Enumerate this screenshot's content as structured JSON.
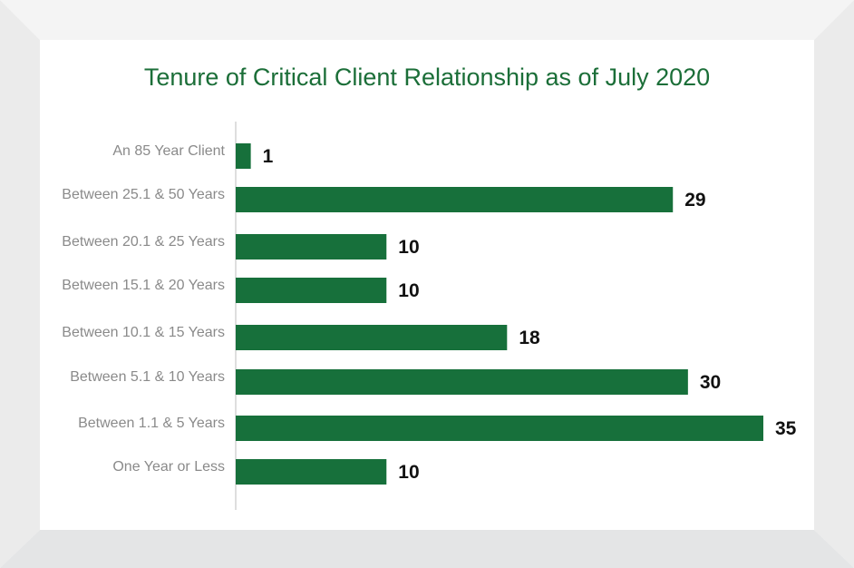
{
  "colors": {
    "bar": "#17703b",
    "title": "#1b6e38",
    "category_text": "#8a8a8a",
    "value_text": "#111111",
    "axis": "#bdbdbd",
    "frame_top": "#f4f4f4",
    "frame_side": "#ebebeb",
    "frame_bottom": "#e4e5e6",
    "panel": "#ffffff"
  },
  "chart_data": {
    "type": "bar",
    "orientation": "horizontal",
    "title": "Tenure of Critical Client Relationship as of July 2020",
    "categories": [
      "An 85 Year Client",
      "Between 25.1 & 50 Years",
      "Between 20.1 & 25 Years",
      "Between 15.1 & 20 Years",
      "Between 10.1 & 15 Years",
      "Between 5.1 & 10 Years",
      "Between 1.1 & 5 Years",
      "One Year or Less"
    ],
    "values": [
      1,
      29,
      10,
      10,
      18,
      30,
      35,
      10
    ],
    "value_labels": [
      "1",
      "29",
      "10",
      "10",
      "18",
      "30",
      "35",
      "10"
    ],
    "xlim": [
      0,
      35
    ],
    "grid": false,
    "legend": "none"
  }
}
